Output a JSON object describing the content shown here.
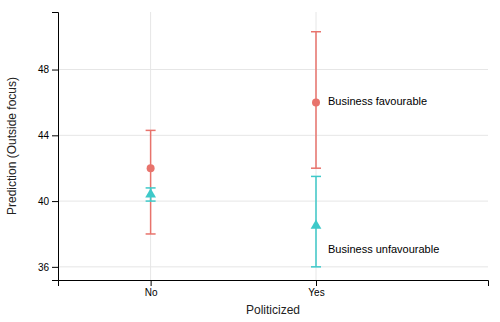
{
  "chart_data": {
    "type": "errorbar",
    "x_label": "Politicized",
    "y_label": "Prediction (Outside focus)",
    "categories": [
      "No",
      "Yes"
    ],
    "series": [
      {
        "color": "#E8736C",
        "marker": "circle",
        "values": [
          42.0,
          46.0
        ],
        "ci_low": [
          38.0,
          42.0
        ],
        "ci_high": [
          44.3,
          50.3
        ]
      },
      {
        "color": "#3EC9C9",
        "marker": "triangle",
        "values": [
          40.4,
          38.5
        ],
        "ci_low": [
          40.0,
          36.0
        ],
        "ci_high": [
          40.8,
          41.5
        ]
      }
    ],
    "annotations": [
      {
        "text": "Business favourable",
        "x": "Yes",
        "y": 46.0
      },
      {
        "text": "Business unfavourable",
        "x": "Yes",
        "y": 37.0
      }
    ],
    "ylim": [
      35.2,
      51.5
    ],
    "yticks": [
      36,
      40,
      44,
      48
    ],
    "grid": true
  }
}
